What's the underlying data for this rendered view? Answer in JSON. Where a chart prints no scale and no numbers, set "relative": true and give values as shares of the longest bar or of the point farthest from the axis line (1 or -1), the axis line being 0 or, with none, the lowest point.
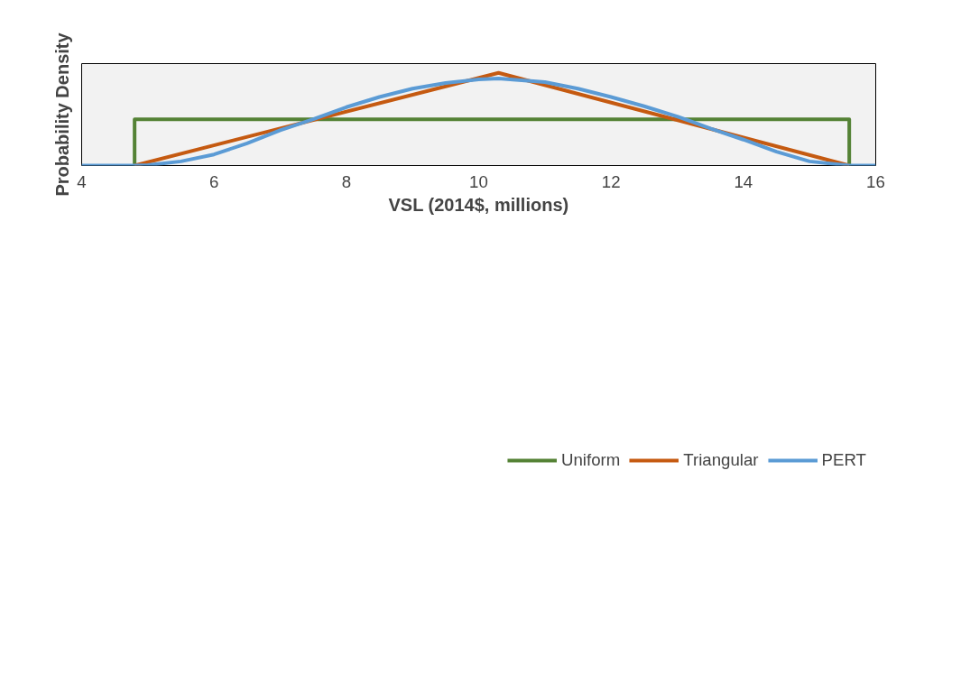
{
  "chart_data": {
    "type": "line",
    "xlabel": "VSL (2014$, millions)",
    "ylabel": "Probability Density",
    "relative": true,
    "xlim": [
      4,
      16
    ],
    "xticks": [
      4,
      6,
      8,
      10,
      12,
      14,
      16
    ],
    "grid": false,
    "legend": "bottom",
    "line_style": "solid",
    "marker": "none",
    "series": [
      {
        "name": "Uniform",
        "color": "#548235",
        "type": "step",
        "x": [
          4.8,
          4.8,
          15.6,
          15.6
        ],
        "values": [
          0,
          0.5,
          0.5,
          0
        ]
      },
      {
        "name": "Triangular",
        "color": "#c55a11",
        "x": [
          4.8,
          10.3,
          15.6
        ],
        "values": [
          0,
          1,
          0
        ]
      },
      {
        "name": "PERT",
        "color": "#5b9bd5",
        "x": [
          4,
          4.8,
          5,
          5.5,
          6,
          6.5,
          7,
          7.5,
          8,
          8.5,
          9,
          9.5,
          10,
          10.3,
          11,
          11.5,
          12,
          12.5,
          13,
          13.5,
          14,
          14.5,
          15,
          15.6,
          16
        ],
        "values": [
          0,
          0,
          0.004,
          0.045,
          0.12,
          0.24,
          0.38,
          0.5,
          0.63,
          0.74,
          0.83,
          0.89,
          0.93,
          0.94,
          0.9,
          0.83,
          0.74,
          0.64,
          0.53,
          0.4,
          0.28,
          0.15,
          0.045,
          0,
          0
        ]
      }
    ]
  }
}
